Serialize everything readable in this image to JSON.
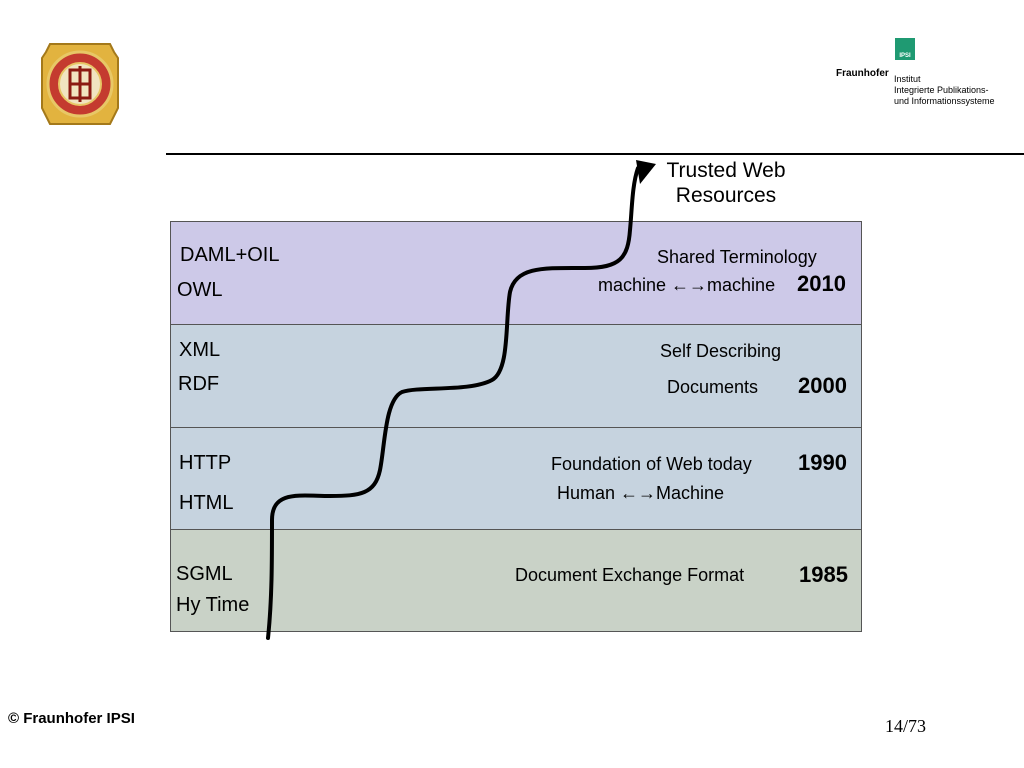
{
  "header": {
    "fraunhofer_name": "Fraunhofer",
    "ipsi_box": "IPSI",
    "institute_lines": [
      "Institut",
      "Integrierte Publikations-",
      "und Informationssysteme"
    ]
  },
  "top_label": [
    "Trusted Web",
    "Resources"
  ],
  "bands": [
    {
      "techs": [
        "DAML+OIL",
        "OWL"
      ],
      "desc": [
        "Shared Terminology",
        "machine ←→machine"
      ],
      "year": "2010",
      "color": "#cdc9e8"
    },
    {
      "techs": [
        "XML",
        "RDF"
      ],
      "desc": [
        "Self Describing",
        "Documents"
      ],
      "year": "2000",
      "color": "#c6d3df"
    },
    {
      "techs": [
        "HTTP",
        "HTML"
      ],
      "desc": [
        "Foundation of Web today",
        "Human ←→Machine"
      ],
      "year": "1990",
      "color": "#c6d3df"
    },
    {
      "techs": [
        "SGML",
        "Hy Time"
      ],
      "desc": [
        "Document Exchange Format"
      ],
      "year": "1985",
      "color": "#c9d2c7"
    }
  ],
  "footer": {
    "copyright": "© Fraunhofer IPSI",
    "page": "14/73"
  },
  "icons": {
    "seal": "university-seal-icon",
    "arrow": "arrowhead-icon",
    "fraunhofer": "fraunhofer-logo-icon"
  }
}
